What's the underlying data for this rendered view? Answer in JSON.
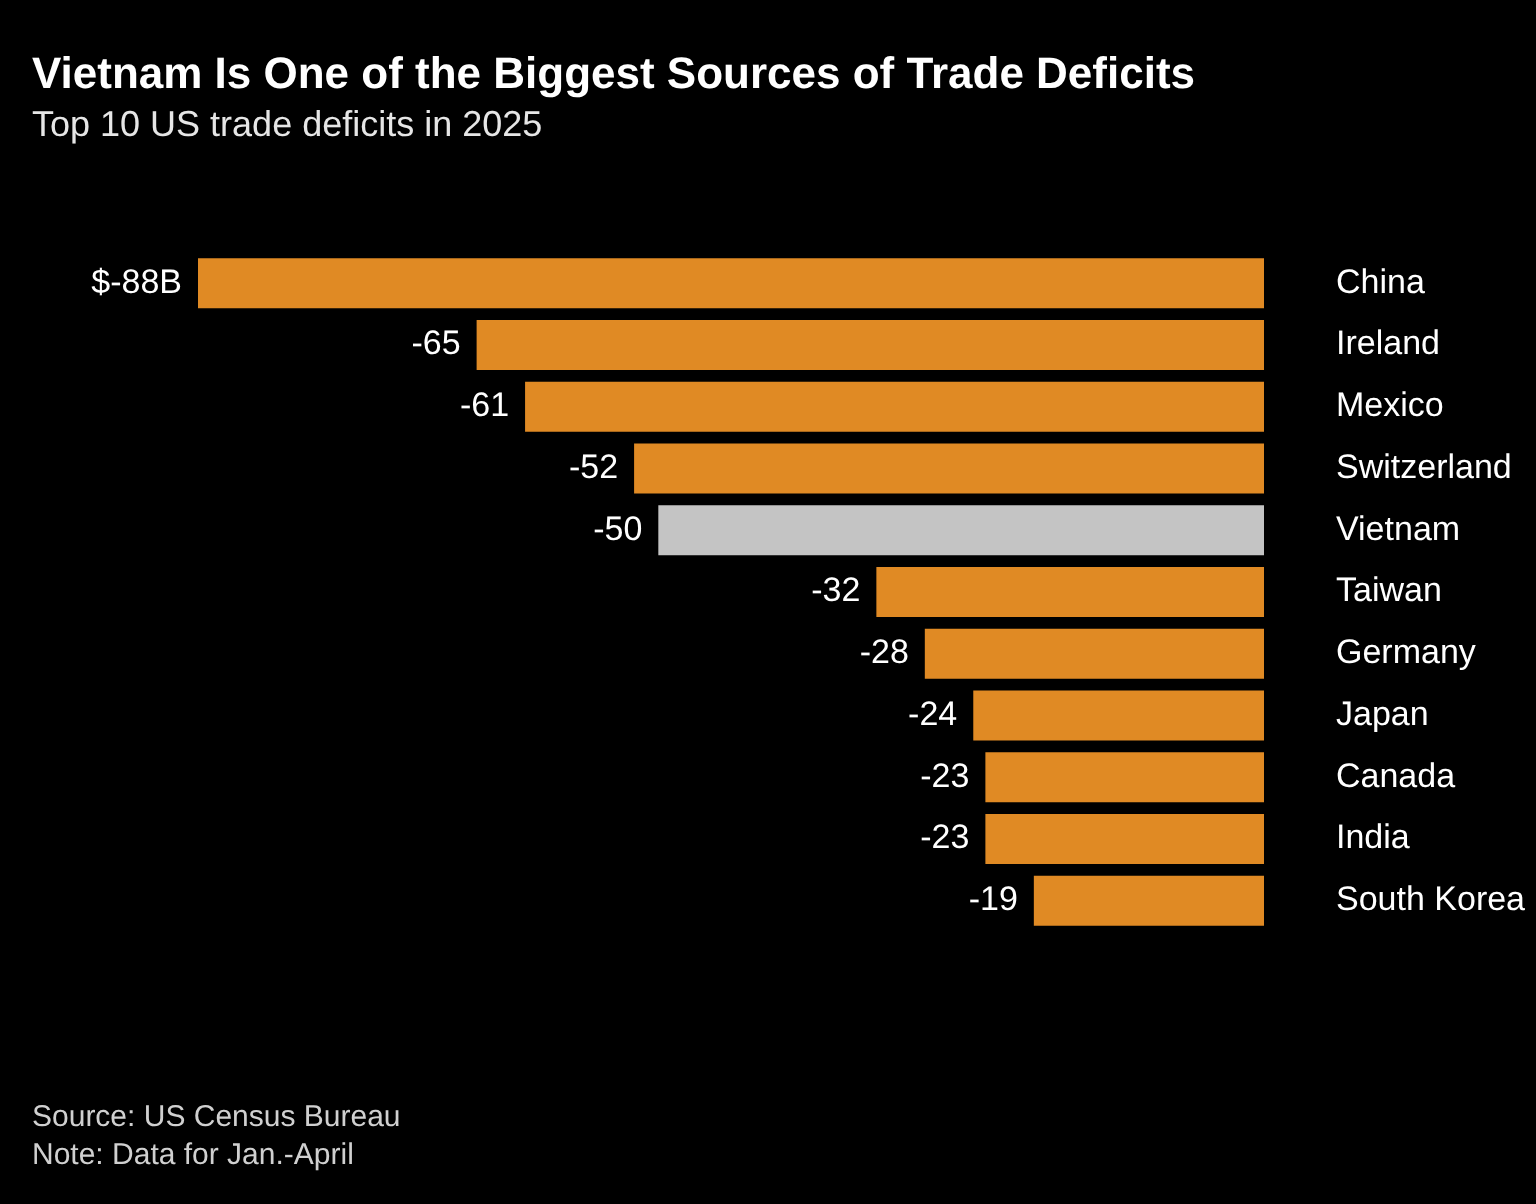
{
  "chart_data": {
    "type": "bar",
    "orientation": "horizontal",
    "title": "Vietnam Is One of the Biggest Sources of Trade Deficits",
    "subtitle": "Top 10 US trade deficits in 2025",
    "categories": [
      "China",
      "Ireland",
      "Mexico",
      "Switzerland",
      "Vietnam",
      "Taiwan",
      "Germany",
      "Japan",
      "Canada",
      "India",
      "South Korea"
    ],
    "values": [
      -88,
      -65,
      -61,
      -52,
      -50,
      -32,
      -28,
      -24,
      -23,
      -23,
      -19
    ],
    "colors": [
      "#e08a24",
      "#e08a24",
      "#e08a24",
      "#e08a24",
      "#c4c4c4",
      "#e08a24",
      "#e08a24",
      "#e08a24",
      "#e08a24",
      "#e08a24",
      "#e08a24"
    ],
    "value_labels": [
      "$-88B",
      "-65",
      "-61",
      "-52",
      "-50",
      "-32",
      "-28",
      "-24",
      "-23",
      "-23",
      "-19"
    ],
    "xlim": [
      -88,
      0
    ],
    "tick_labels": "y",
    "annotations": [
      "Source: US Census Bureau",
      "Note: Data for Jan.-April"
    ]
  }
}
